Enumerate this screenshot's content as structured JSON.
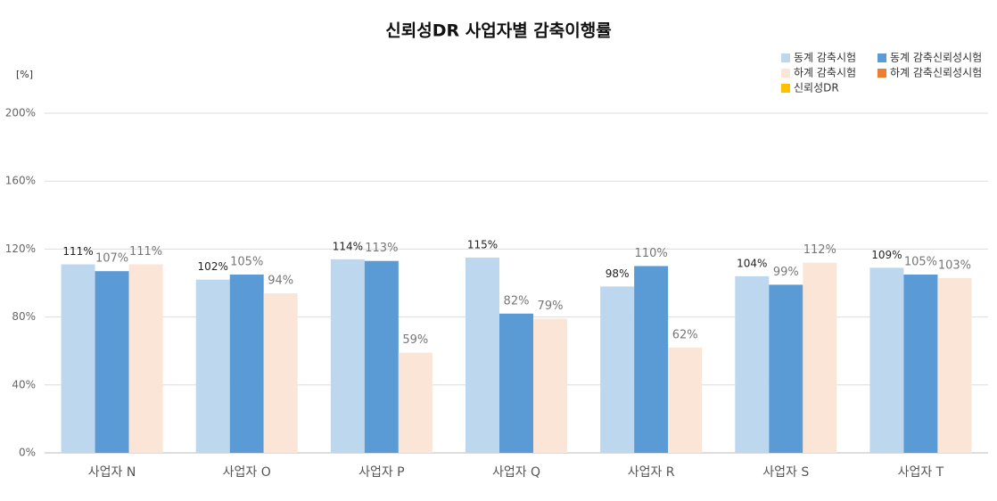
{
  "chart_data": {
    "type": "bar",
    "title": "신뢰성DR 사업자별 감축이행률",
    "y_unit": "[%]",
    "categories": [
      "사업자 N",
      "사업자 O",
      "사업자 P",
      "사업자 Q",
      "사업자 R",
      "사업자 S",
      "사업자 T"
    ],
    "series": [
      {
        "name": "동계 감축시험",
        "color": "#bdd7ee",
        "values": [
          111,
          102,
          114,
          115,
          98,
          104,
          109
        ],
        "value_labels": [
          "111%",
          "102%",
          "114%",
          "115%",
          "98%",
          "104%",
          "109%"
        ]
      },
      {
        "name": "동계 감축신뢰성시험",
        "color": "#5b9bd5",
        "values": [
          107,
          105,
          113,
          82,
          110,
          99,
          105
        ],
        "value_labels": [
          "107%",
          "105%",
          "113%",
          "82%",
          "110%",
          "99%",
          "105%"
        ]
      },
      {
        "name": "하계 감축시험",
        "color": "#fbe5d6",
        "values": [
          111,
          94,
          59,
          79,
          62,
          112,
          103
        ],
        "value_labels": [
          "111%",
          "94%",
          "59%",
          "79%",
          "62%",
          "112%",
          "103%"
        ]
      },
      {
        "name": "하계 감축신뢰성시험",
        "color": "#ed7d31",
        "values": [
          null,
          null,
          null,
          null,
          null,
          null,
          null
        ]
      },
      {
        "name": "신뢰성DR",
        "color": "#ffc000",
        "values": [
          null,
          null,
          null,
          null,
          null,
          null,
          null
        ]
      }
    ],
    "ylim": [
      0,
      200
    ],
    "yticks": [
      {
        "value": 0,
        "label": "0%"
      },
      {
        "value": 40,
        "label": "40%"
      },
      {
        "value": 80,
        "label": "80%"
      },
      {
        "value": 120,
        "label": "120%"
      },
      {
        "value": 160,
        "label": "160%"
      },
      {
        "value": 200,
        "label": "200%"
      }
    ],
    "grid": true,
    "legend": "top-right"
  }
}
